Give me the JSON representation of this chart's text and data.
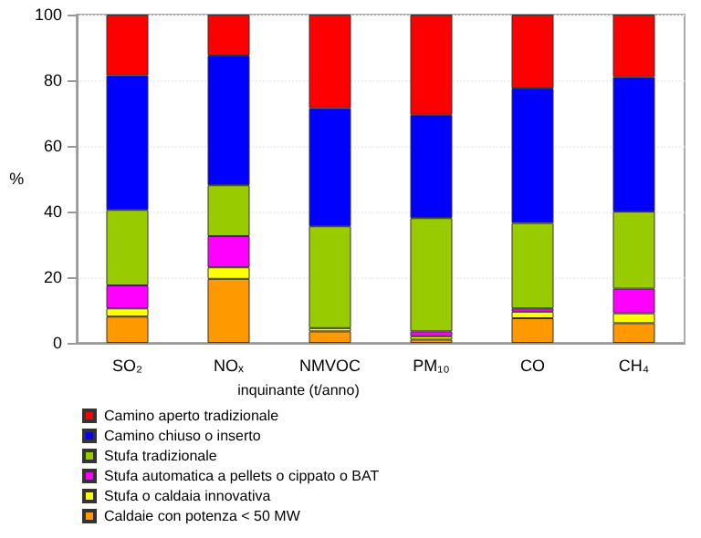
{
  "chart_data": {
    "type": "bar",
    "stacked": true,
    "xlabel": "inquinante (t/anno)",
    "ylabel": "%",
    "categories": [
      "SO₂",
      "NOₓ",
      "NMVOC",
      "PM₁₀",
      "CO",
      "CH₄"
    ],
    "series": [
      {
        "name": "Caldaie con potenza < 50 MW",
        "color": "#ff9900",
        "values": [
          8,
          19.5,
          3.5,
          1,
          7.5,
          6
        ]
      },
      {
        "name": "Stufa o caldaia innovativa",
        "color": "#ffff00",
        "values": [
          2.5,
          3.5,
          1,
          1,
          2,
          3
        ]
      },
      {
        "name": "Stufa automatica a pellets o cippato o BAT",
        "color": "#ff00ff",
        "values": [
          7,
          9.5,
          null,
          1.5,
          1,
          7.5
        ]
      },
      {
        "name": "Stufa tradizionale",
        "color": "#99cc00",
        "values": [
          23,
          15.5,
          31,
          34.5,
          26,
          23.5
        ]
      },
      {
        "name": "Camino chiuso o inserto",
        "color": "#0000ff",
        "values": [
          41,
          39.5,
          36,
          31.5,
          41,
          41
        ]
      },
      {
        "name": "Camino aperto tradizionale",
        "color": "#ff0000",
        "values": [
          18.5,
          12.5,
          28.5,
          30.5,
          22.5,
          19
        ]
      }
    ],
    "ylim": [
      0,
      100
    ],
    "yticks": [
      0,
      20,
      40,
      60,
      80,
      100
    ],
    "grid": "y",
    "legend": "bottom"
  }
}
